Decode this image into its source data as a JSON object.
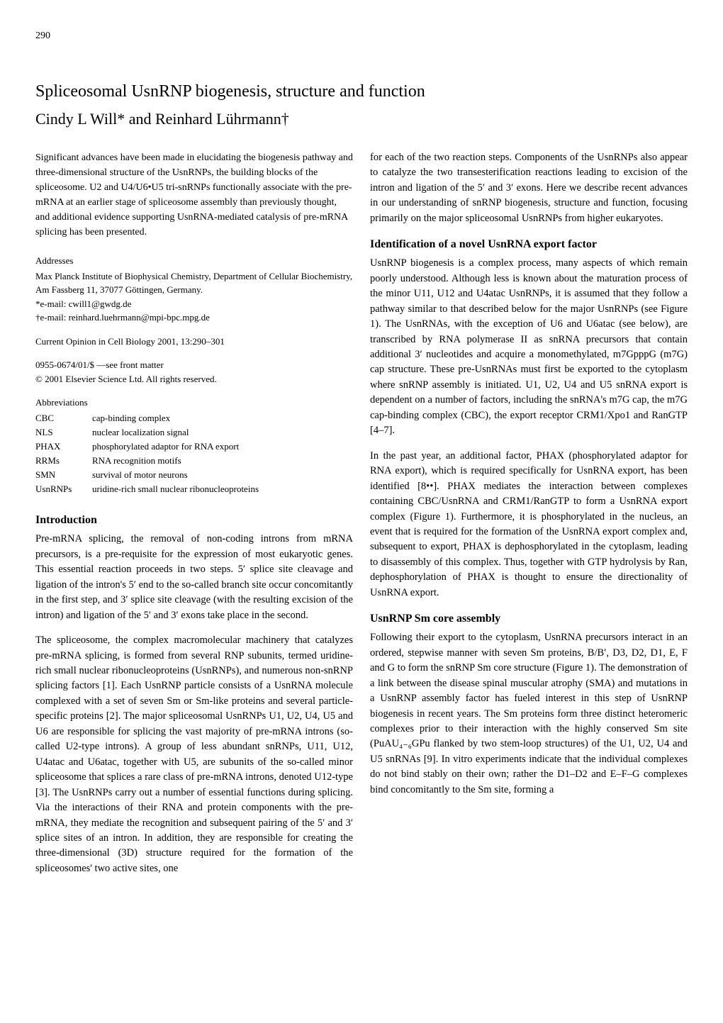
{
  "page_number": "290",
  "title": "Spliceosomal UsnRNP biogenesis, structure and function",
  "authors": "Cindy L Will* and Reinhard Lührmann†",
  "abstract": "Significant advances have been made in elucidating the biogenesis pathway and three-dimensional structure of the UsnRNPs, the building blocks of the spliceosome. U2 and U4/U6•U5 tri-snRNPs functionally associate with the pre-mRNA at an earlier stage of spliceosome assembly than previously thought, and additional evidence supporting UsnRNA-mediated catalysis of pre-mRNA splicing has been presented.",
  "addresses": {
    "heading": "Addresses",
    "text": "Max Planck Institute of Biophysical Chemistry, Department of Cellular Biochemistry, Am Fassberg 11, 37077 Göttingen, Germany.\n*e-mail: cwill1@gwdg.de\n†e-mail: reinhard.luehrmann@mpi-bpc.mpg.de"
  },
  "journal": "Current Opinion in Cell Biology 2001, 13:290–301",
  "copyright": "0955-0674/01/$ —see front matter\n© 2001 Elsevier Science Ltd. All rights reserved.",
  "abbreviations": {
    "heading": "Abbreviations",
    "rows": [
      {
        "key": "CBC",
        "val": "cap-binding complex"
      },
      {
        "key": "NLS",
        "val": "nuclear localization signal"
      },
      {
        "key": "PHAX",
        "val": "phosphorylated adaptor for RNA export"
      },
      {
        "key": "RRMs",
        "val": "RNA recognition motifs"
      },
      {
        "key": "SMN",
        "val": "survival of motor neurons"
      },
      {
        "key": "UsnRNPs",
        "val": "uridine-rich small nuclear ribonucleoproteins"
      }
    ]
  },
  "sections": {
    "intro_heading": "Introduction",
    "intro_p1": "Pre-mRNA splicing, the removal of non-coding introns from mRNA precursors, is a pre-requisite for the expression of most eukaryotic genes. This essential reaction proceeds in two steps. 5′ splice site cleavage and ligation of the intron's 5′ end to the so-called branch site occur concomitantly in the first step, and 3′ splice site cleavage (with the resulting excision of the intron) and ligation of the 5′ and 3′ exons take place in the second.",
    "intro_p2": "The spliceosome, the complex macromolecular machinery that catalyzes pre-mRNA splicing, is formed from several RNP subunits, termed uridine-rich small nuclear ribonucleoproteins (UsnRNPs), and numerous non-snRNP splicing factors [1]. Each UsnRNP particle consists of a UsnRNA molecule complexed with a set of seven Sm or Sm-like proteins and several particle-specific proteins [2]. The major spliceosomal UsnRNPs U1, U2, U4, U5 and U6 are responsible for splicing the vast majority of pre-mRNA introns (so-called U2-type introns). A group of less abundant snRNPs, U11, U12, U4atac and U6atac, together with U5, are subunits of the so-called minor spliceosome that splices a rare class of pre-mRNA introns, denoted U12-type [3]. The UsnRNPs carry out a number of essential functions during splicing. Via the interactions of their RNA and protein components with the pre-mRNA, they mediate the recognition and subsequent pairing of the 5′ and 3′ splice sites of an intron. In addition, they are responsible for creating the three-dimensional (3D) structure required for the formation of the spliceosomes' two active sites, one",
    "right_p1": "for each of the two reaction steps. Components of the UsnRNPs also appear to catalyze the two transesterification reactions leading to excision of the intron and ligation of the 5′ and 3′ exons. Here we describe recent advances in our understanding of snRNP biogenesis, structure and function, focusing primarily on the major spliceosomal UsnRNPs from higher eukaryotes.",
    "ident_heading": "Identification of a novel UsnRNA export factor",
    "ident_p1": "UsnRNP biogenesis is a complex process, many aspects of which remain poorly understood. Although less is known about the maturation process of the minor U11, U12 and U4atac UsnRNPs, it is assumed that they follow a pathway similar to that described below for the major UsnRNPs (see Figure 1). The UsnRNAs, with the exception of U6 and U6atac (see below), are transcribed by RNA polymerase II as snRNA precursors that contain additional 3′ nucleotides and acquire a monomethylated, m7GpppG (m7G) cap structure. These pre-UsnRNAs must first be exported to the cytoplasm where snRNP assembly is initiated. U1, U2, U4 and U5 snRNA export is dependent on a number of factors, including the snRNA's m7G cap, the m7G cap-binding complex (CBC), the export receptor CRM1/Xpo1 and RanGTP [4–7].",
    "ident_p2": "In the past year, an additional factor, PHAX (phosphorylated adaptor for RNA export), which is required specifically for UsnRNA export, has been identified [8••]. PHAX mediates the interaction between complexes containing CBC/UsnRNA and CRM1/RanGTP to form a UsnRNA export complex (Figure 1). Furthermore, it is phosphorylated in the nucleus, an event that is required for the formation of the UsnRNA export complex and, subsequent to export, PHAX is dephosphorylated in the cytoplasm, leading to disassembly of this complex. Thus, together with GTP hydrolysis by Ran, dephosphorylation of PHAX is thought to ensure the directionality of UsnRNA export.",
    "sm_heading": "UsnRNP Sm core assembly",
    "sm_p1": "Following their export to the cytoplasm, UsnRNA precursors interact in an ordered, stepwise manner with seven Sm proteins, B/B′, D3, D2, D1, E, F and G to form the snRNP Sm core structure (Figure 1). The demonstration of a link between the disease spinal muscular atrophy (SMA) and mutations in a UsnRNP assembly factor has fueled interest in this step of UsnRNP biogenesis in recent years. The Sm proteins form three distinct heteromeric complexes prior to their interaction with the highly conserved Sm site (PuAU₄₋₆GPu flanked by two stem-loop structures) of the U1, U2, U4 and U5 snRNAs [9]. In vitro experiments indicate that the individual complexes do not bind stably on their own; rather the D1–D2 and E–F–G complexes bind concomitantly to the Sm site, forming a"
  }
}
